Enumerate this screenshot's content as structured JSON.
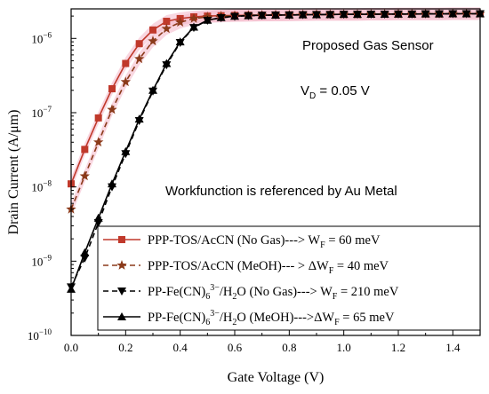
{
  "chart_data": {
    "type": "line",
    "xlabel": "Gate Voltage (V)",
    "ylabel": "Drain Current (A/μm)",
    "x_ticks": [
      "0.0",
      "0.2",
      "0.4",
      "0.6",
      "0.8",
      "1.0",
      "1.2",
      "1.4"
    ],
    "xlim": [
      0,
      1.5
    ],
    "y_scale": "log",
    "ylim": [
      1e-10,
      2.5e-06
    ],
    "y_ticks": [
      {
        "value": 1e-10,
        "base": "10",
        "exp": "−10"
      },
      {
        "value": 1e-09,
        "base": "10",
        "exp": "−9"
      },
      {
        "value": 1e-08,
        "base": "10",
        "exp": "−8"
      },
      {
        "value": 1e-07,
        "base": "10",
        "exp": "−7"
      },
      {
        "value": 1e-06,
        "base": "10",
        "exp": "−6"
      }
    ],
    "annotations": {
      "title": "Proposed Gas Sensor",
      "vd_symbol": "V",
      "vd_sub": "D",
      "vd_value": " = 0.05 V",
      "note": "Workfunction is referenced by Au Metal"
    },
    "legend_position": "bottom-right",
    "series": [
      {
        "name": "PPP-TOS/AcCN (No Gas)---> W_F = 60 meV",
        "legend": {
          "pre": "PPP-TOS/AcCN (No Gas)---> W",
          "sub": "F",
          "post": " = 60 meV"
        },
        "color": "#c0392b",
        "marker": "square",
        "line": "solid",
        "x": [
          0.0,
          0.05,
          0.1,
          0.15,
          0.2,
          0.25,
          0.3,
          0.35,
          0.4,
          0.45,
          0.5,
          0.55,
          0.6,
          0.65,
          0.7,
          0.75,
          0.8,
          0.85,
          0.9,
          0.95,
          1.0,
          1.05,
          1.1,
          1.15,
          1.2,
          1.25,
          1.3,
          1.35,
          1.4,
          1.45,
          1.5
        ],
        "y": [
          1.1e-08,
          3.2e-08,
          8.5e-08,
          2.1e-07,
          4.6e-07,
          8.5e-07,
          1.3e-06,
          1.7e-06,
          1.85e-06,
          1.95e-06,
          2e-06,
          2.02e-06,
          2.04e-06,
          2.05e-06,
          2.06e-06,
          2.07e-06,
          2.08e-06,
          2.09e-06,
          2.1e-06,
          2.1e-06,
          2.11e-06,
          2.11e-06,
          2.12e-06,
          2.12e-06,
          2.13e-06,
          2.13e-06,
          2.14e-06,
          2.14e-06,
          2.15e-06,
          2.15e-06,
          2.15e-06
        ]
      },
      {
        "name": "PPP-TOS/AcCN (MeOH)--- > ΔW_F = 40 meV",
        "legend": {
          "pre": "PPP-TOS/AcCN (MeOH)--- > ΔW",
          "sub": "F",
          "post": " = 40 meV"
        },
        "color": "#8b3a1a",
        "marker": "star",
        "line": "dashed",
        "x": [
          0.0,
          0.05,
          0.1,
          0.15,
          0.2,
          0.25,
          0.3,
          0.35,
          0.4,
          0.45,
          0.5,
          0.55,
          0.6,
          0.65,
          0.7,
          0.75,
          0.8,
          0.85,
          0.9,
          0.95,
          1.0,
          1.05,
          1.1,
          1.15,
          1.2,
          1.25,
          1.3,
          1.35,
          1.4,
          1.45,
          1.5
        ],
        "y": [
          5e-09,
          1.4e-08,
          4e-08,
          1.1e-07,
          2.6e-07,
          5.3e-07,
          9.2e-07,
          1.35e-06,
          1.65e-06,
          1.85e-06,
          1.95e-06,
          2e-06,
          2.03e-06,
          2.05e-06,
          2.06e-06,
          2.07e-06,
          2.08e-06,
          2.09e-06,
          2.1e-06,
          2.1e-06,
          2.11e-06,
          2.11e-06,
          2.12e-06,
          2.12e-06,
          2.13e-06,
          2.13e-06,
          2.14e-06,
          2.14e-06,
          2.15e-06,
          2.15e-06,
          2.15e-06
        ]
      },
      {
        "name": "PP-Fe(CN)6 3−/H2O (No Gas)---> W_F = 210 meV",
        "legend": {
          "pre": "PP-Fe(CN)",
          "sub": "6",
          "sup": "3−",
          "mid": "/H",
          "sub2": "2",
          "post": "O (No Gas)---> W",
          "sub3": "F",
          "post2": " = 210 meV"
        },
        "color": "#000000",
        "marker": "triangle-down",
        "line": "dashed",
        "x": [
          0.0,
          0.05,
          0.1,
          0.15,
          0.2,
          0.25,
          0.3,
          0.35,
          0.4,
          0.45,
          0.5,
          0.55,
          0.6,
          0.65,
          0.7,
          0.75,
          0.8,
          0.85,
          0.9,
          0.95,
          1.0,
          1.05,
          1.1,
          1.15,
          1.2,
          1.25,
          1.3,
          1.35,
          1.4,
          1.45,
          1.5
        ],
        "y": [
          4.5e-10,
          1.1e-09,
          3.3e-09,
          1e-08,
          2.8e-08,
          7.8e-08,
          1.95e-07,
          4.4e-07,
          8.8e-07,
          1.4e-06,
          1.75e-06,
          1.9e-06,
          1.98e-06,
          2.02e-06,
          2.05e-06,
          2.06e-06,
          2.07e-06,
          2.08e-06,
          2.09e-06,
          2.1e-06,
          2.11e-06,
          2.11e-06,
          2.12e-06,
          2.12e-06,
          2.13e-06,
          2.13e-06,
          2.14e-06,
          2.14e-06,
          2.15e-06,
          2.15e-06,
          2.15e-06
        ]
      },
      {
        "name": "PP-Fe(CN)6 3−/H2O (MeOH)--->ΔW_F = 65 meV",
        "legend": {
          "pre": "PP-Fe(CN)",
          "sub": "6",
          "sup": "3−",
          "mid": "/H",
          "sub2": "2",
          "post": "O (MeOH)--->ΔW",
          "sub3": "F",
          "post2": " = 65 meV"
        },
        "color": "#000000",
        "marker": "triangle-up",
        "line": "solid",
        "x": [
          0.0,
          0.05,
          0.1,
          0.15,
          0.2,
          0.25,
          0.3,
          0.35,
          0.4,
          0.45,
          0.5,
          0.55,
          0.6,
          0.65,
          0.7,
          0.75,
          0.8,
          0.85,
          0.9,
          0.95,
          1.0,
          1.05,
          1.1,
          1.15,
          1.2,
          1.25,
          1.3,
          1.35,
          1.4,
          1.45,
          1.5
        ],
        "y": [
          4.2e-10,
          1.3e-09,
          3.8e-09,
          1.1e-08,
          3e-08,
          8.2e-08,
          2e-07,
          4.6e-07,
          9e-07,
          1.42e-06,
          1.76e-06,
          1.91e-06,
          1.99e-06,
          2.03e-06,
          2.05e-06,
          2.06e-06,
          2.07e-06,
          2.08e-06,
          2.09e-06,
          2.1e-06,
          2.11e-06,
          2.11e-06,
          2.12e-06,
          2.12e-06,
          2.13e-06,
          2.13e-06,
          2.14e-06,
          2.14e-06,
          2.15e-06,
          2.15e-06,
          2.15e-06
        ]
      }
    ]
  }
}
